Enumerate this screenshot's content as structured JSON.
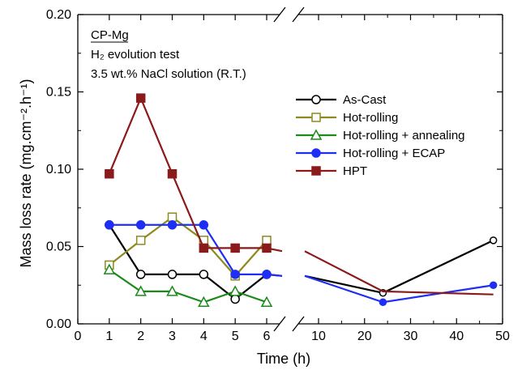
{
  "chart_data": {
    "type": "line",
    "xlabel": "Time (h)",
    "ylabel": "Mass loss rate (mg.cm⁻².h⁻¹)",
    "ylim": [
      0,
      0.2
    ],
    "x_axis_break": true,
    "x_ticks_left": [
      "0",
      "1",
      "2",
      "3",
      "4",
      "5",
      "6"
    ],
    "x_ticks_right": [
      "10",
      "20",
      "30",
      "40",
      "50"
    ],
    "y_ticks": [
      "0.00",
      "0.05",
      "0.10",
      "0.15",
      "0.20"
    ],
    "annotations": [
      "CP-Mg",
      "H₂ evolution test",
      "3.5 wt.% NaCl solution (R.T.)"
    ],
    "legend_position": "right",
    "series": [
      {
        "name": "As-Cast",
        "color": "#000000",
        "marker": "circle-open",
        "x": [
          1,
          2,
          3,
          4,
          5,
          6,
          7,
          24,
          48
        ],
        "y": [
          0.064,
          0.032,
          0.032,
          0.032,
          0.016,
          0.032,
          0.031,
          0.02,
          0.054
        ]
      },
      {
        "name": "Hot-rolling",
        "color": "#8c8a1e",
        "marker": "square-open",
        "x": [
          1,
          2,
          3,
          4,
          5,
          6
        ],
        "y": [
          0.038,
          0.054,
          0.069,
          0.054,
          0.031,
          0.054
        ]
      },
      {
        "name": "Hot-rolling + annealing",
        "color": "#1a8a1a",
        "marker": "triangle-open",
        "x": [
          1,
          2,
          3,
          4,
          5,
          6
        ],
        "y": [
          0.035,
          0.021,
          0.021,
          0.014,
          0.021,
          0.014
        ]
      },
      {
        "name": "Hot-rolling + ECAP",
        "color": "#1f2ef5",
        "marker": "circle-filled",
        "x": [
          1,
          2,
          3,
          4,
          5,
          6,
          7,
          24,
          48
        ],
        "y": [
          0.064,
          0.064,
          0.064,
          0.064,
          0.032,
          0.032,
          0.031,
          0.014,
          0.025
        ]
      },
      {
        "name": "HPT",
        "color": "#8b1a1a",
        "marker": "square-filled",
        "x": [
          1,
          2,
          3,
          4,
          5,
          6,
          7,
          24,
          48
        ],
        "y": [
          0.097,
          0.146,
          0.097,
          0.049,
          0.049,
          0.049,
          0.047,
          0.021,
          0.019
        ]
      }
    ]
  }
}
